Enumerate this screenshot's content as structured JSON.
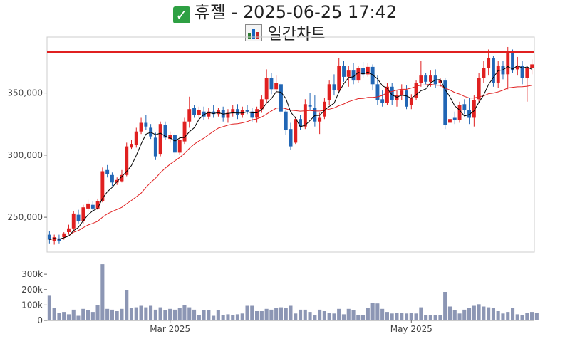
{
  "header": {
    "line1": "휴젤 - 2025-06-25 17:42",
    "line2": "일간차트",
    "check_icon": "check-mark-icon",
    "chart_icon": "bar-chart-icon"
  },
  "chart_data": [
    {
      "type": "candlestick",
      "title": "",
      "up_color": "#e02020",
      "down_color": "#2166b5",
      "ma_short_color": "#000000",
      "ma_long_color": "#e02020",
      "resistance_line": 383000,
      "resistance_color": "#e02020",
      "ylim": [
        222000,
        395000
      ],
      "yticks": [
        250000,
        300000,
        350000
      ],
      "ytick_labels": [
        "250,000",
        "300,000",
        "350,000"
      ],
      "xtick_labels": [
        {
          "label": "Mar 2025",
          "index": 25
        },
        {
          "label": "May 2025",
          "index": 75
        }
      ],
      "ohlc": [
        [
          236000,
          239000,
          229000,
          232000
        ],
        [
          231000,
          236000,
          228000,
          234000
        ],
        [
          233000,
          236000,
          229000,
          231000
        ],
        [
          234000,
          238000,
          232000,
          237000
        ],
        [
          238000,
          244000,
          236000,
          241000
        ],
        [
          241000,
          255000,
          239000,
          253000
        ],
        [
          252000,
          256000,
          245000,
          247000
        ],
        [
          247000,
          260000,
          245000,
          258000
        ],
        [
          257000,
          264000,
          255000,
          261000
        ],
        [
          260000,
          263000,
          255000,
          257000
        ],
        [
          257000,
          265000,
          256000,
          263000
        ],
        [
          263000,
          290000,
          262000,
          287000
        ],
        [
          288000,
          292000,
          282000,
          285000
        ],
        [
          284000,
          286000,
          275000,
          278000
        ],
        [
          278000,
          282000,
          276000,
          280000
        ],
        [
          279000,
          288000,
          278000,
          284000
        ],
        [
          284000,
          310000,
          283000,
          307000
        ],
        [
          306000,
          312000,
          305000,
          309000
        ],
        [
          308000,
          322000,
          306000,
          319000
        ],
        [
          319000,
          330000,
          317000,
          326000
        ],
        [
          326000,
          332000,
          320000,
          323000
        ],
        [
          322000,
          325000,
          313000,
          315000
        ],
        [
          314000,
          318000,
          296000,
          299000
        ],
        [
          301000,
          327000,
          299000,
          325000
        ],
        [
          324000,
          327000,
          312000,
          314000
        ],
        [
          313000,
          319000,
          310000,
          316000
        ],
        [
          316000,
          318000,
          299000,
          302000
        ],
        [
          302000,
          315000,
          300000,
          312000
        ],
        [
          311000,
          330000,
          309000,
          327000
        ],
        [
          327000,
          347000,
          322000,
          337000
        ],
        [
          338000,
          340000,
          330000,
          332000
        ],
        [
          332000,
          339000,
          330000,
          336000
        ],
        [
          335000,
          339000,
          328000,
          331000
        ],
        [
          331000,
          338000,
          329000,
          335000
        ],
        [
          335000,
          340000,
          330000,
          333000
        ],
        [
          333000,
          338000,
          331000,
          336000
        ],
        [
          336000,
          339000,
          327000,
          330000
        ],
        [
          330000,
          337000,
          326000,
          334000
        ],
        [
          334000,
          340000,
          331000,
          337000
        ],
        [
          337000,
          341000,
          329000,
          332000
        ],
        [
          332000,
          339000,
          330000,
          336000
        ],
        [
          336000,
          340000,
          333000,
          335000
        ],
        [
          335000,
          338000,
          327000,
          330000
        ],
        [
          330000,
          339000,
          326000,
          337000
        ],
        [
          337000,
          348000,
          334000,
          345000
        ],
        [
          345000,
          369000,
          342000,
          362000
        ],
        [
          362000,
          366000,
          349000,
          353000
        ],
        [
          353000,
          364000,
          350000,
          358000
        ],
        [
          357000,
          358000,
          332000,
          335000
        ],
        [
          335000,
          337000,
          316000,
          320000
        ],
        [
          321000,
          326000,
          304000,
          307000
        ],
        [
          310000,
          331000,
          309000,
          329000
        ],
        [
          329000,
          332000,
          320000,
          323000
        ],
        [
          323000,
          345000,
          321000,
          341000
        ],
        [
          340000,
          350000,
          336000,
          339000
        ],
        [
          338000,
          348000,
          323000,
          327000
        ],
        [
          327000,
          334000,
          317000,
          330000
        ],
        [
          331000,
          346000,
          329000,
          343000
        ],
        [
          344000,
          360000,
          340000,
          357000
        ],
        [
          357000,
          365000,
          348000,
          352000
        ],
        [
          352000,
          378000,
          350000,
          372000
        ],
        [
          372000,
          376000,
          359000,
          363000
        ],
        [
          363000,
          372000,
          355000,
          368000
        ],
        [
          368000,
          374000,
          357000,
          360000
        ],
        [
          360000,
          372000,
          358000,
          370000
        ],
        [
          370000,
          375000,
          362000,
          365000
        ],
        [
          365000,
          374000,
          363000,
          371000
        ],
        [
          371000,
          373000,
          352000,
          357000
        ],
        [
          357000,
          364000,
          340000,
          344000
        ],
        [
          345000,
          352000,
          339000,
          342000
        ],
        [
          342000,
          358000,
          340000,
          355000
        ],
        [
          355000,
          358000,
          340000,
          344000
        ],
        [
          344000,
          352000,
          339000,
          348000
        ],
        [
          348000,
          357000,
          344000,
          352000
        ],
        [
          352000,
          356000,
          337000,
          339000
        ],
        [
          340000,
          349000,
          337000,
          346000
        ],
        [
          346000,
          360000,
          344000,
          358000
        ],
        [
          358000,
          376000,
          355000,
          364000
        ],
        [
          364000,
          366000,
          357000,
          359000
        ],
        [
          359000,
          368000,
          355000,
          364000
        ],
        [
          364000,
          369000,
          354000,
          357000
        ],
        [
          358000,
          362000,
          355000,
          360000
        ],
        [
          360000,
          362000,
          321000,
          324000
        ],
        [
          326000,
          331000,
          318000,
          329000
        ],
        [
          330000,
          335000,
          325000,
          328000
        ],
        [
          328000,
          343000,
          326000,
          340000
        ],
        [
          341000,
          345000,
          333000,
          336000
        ],
        [
          336000,
          346000,
          325000,
          330000
        ],
        [
          330000,
          348000,
          323000,
          344000
        ],
        [
          345000,
          366000,
          342000,
          362000
        ],
        [
          362000,
          376000,
          358000,
          370000
        ],
        [
          370000,
          385000,
          364000,
          378000
        ],
        [
          378000,
          380000,
          355000,
          358000
        ],
        [
          358000,
          376000,
          354000,
          372000
        ],
        [
          372000,
          376000,
          361000,
          365000
        ],
        [
          365000,
          387000,
          353000,
          383000
        ],
        [
          382000,
          385000,
          366000,
          368000
        ],
        [
          369000,
          379000,
          364000,
          372000
        ],
        [
          372000,
          376000,
          357000,
          362000
        ],
        [
          362000,
          372000,
          343000,
          370000
        ],
        [
          370000,
          377000,
          365000,
          373000
        ]
      ],
      "volume": {
        "ylim": [
          0,
          370000
        ],
        "yticks": [
          0,
          100000,
          200000,
          300000
        ],
        "ytick_labels": [
          "0",
          "100k",
          "200k",
          "300k"
        ],
        "values": [
          160000,
          80000,
          50000,
          55000,
          40000,
          70000,
          30000,
          75000,
          65000,
          55000,
          100000,
          365000,
          75000,
          70000,
          60000,
          75000,
          195000,
          80000,
          85000,
          95000,
          85000,
          95000,
          70000,
          85000,
          65000,
          75000,
          70000,
          80000,
          100000,
          85000,
          70000,
          35000,
          65000,
          65000,
          30000,
          65000,
          35000,
          40000,
          35000,
          40000,
          45000,
          95000,
          95000,
          60000,
          60000,
          75000,
          70000,
          80000,
          85000,
          80000,
          95000,
          45000,
          70000,
          70000,
          55000,
          35000,
          70000,
          60000,
          50000,
          45000,
          75000,
          40000,
          75000,
          65000,
          35000,
          35000,
          80000,
          115000,
          110000,
          75000,
          55000,
          45000,
          50000,
          50000,
          45000,
          50000,
          45000,
          85000,
          35000,
          35000,
          35000,
          35000,
          185000,
          90000,
          65000,
          45000,
          70000,
          80000,
          95000,
          105000,
          90000,
          85000,
          80000,
          60000,
          45000,
          55000,
          80000,
          40000,
          35000,
          50000,
          55000,
          50000
        ]
      }
    }
  ]
}
